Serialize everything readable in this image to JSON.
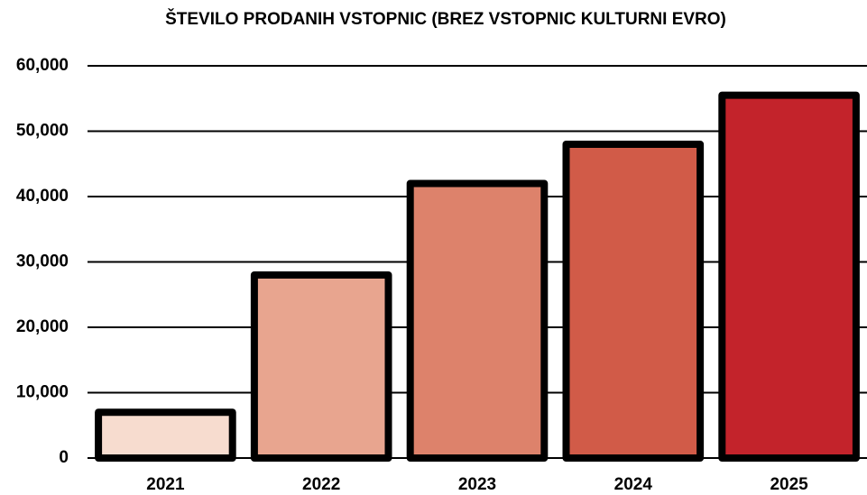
{
  "chart_data": {
    "type": "bar",
    "title": "ŠTEVILO PRODANIH VSTOPNIC (BREZ VSTOPNIC KULTURNI EVRO)",
    "categories": [
      "2021",
      "2022",
      "2023",
      "2024",
      "2025"
    ],
    "values": [
      7000,
      28000,
      42000,
      48000,
      55500
    ],
    "colors": [
      "#f7dccf",
      "#e8a58f",
      "#dd826b",
      "#d15b48",
      "#c3232b"
    ],
    "ylim": [
      0,
      60000
    ],
    "yticks": [
      0,
      {
        "value": 10000,
        "label": "10,000"
      },
      {
        "value": 20000,
        "label": "20,000"
      },
      {
        "value": 30000,
        "label": "30,000"
      },
      {
        "value": 40000,
        "label": "40,000"
      },
      {
        "value": 50000,
        "label": "50,000"
      },
      {
        "value": 60000,
        "label": "60,000"
      }
    ],
    "grid": true
  }
}
